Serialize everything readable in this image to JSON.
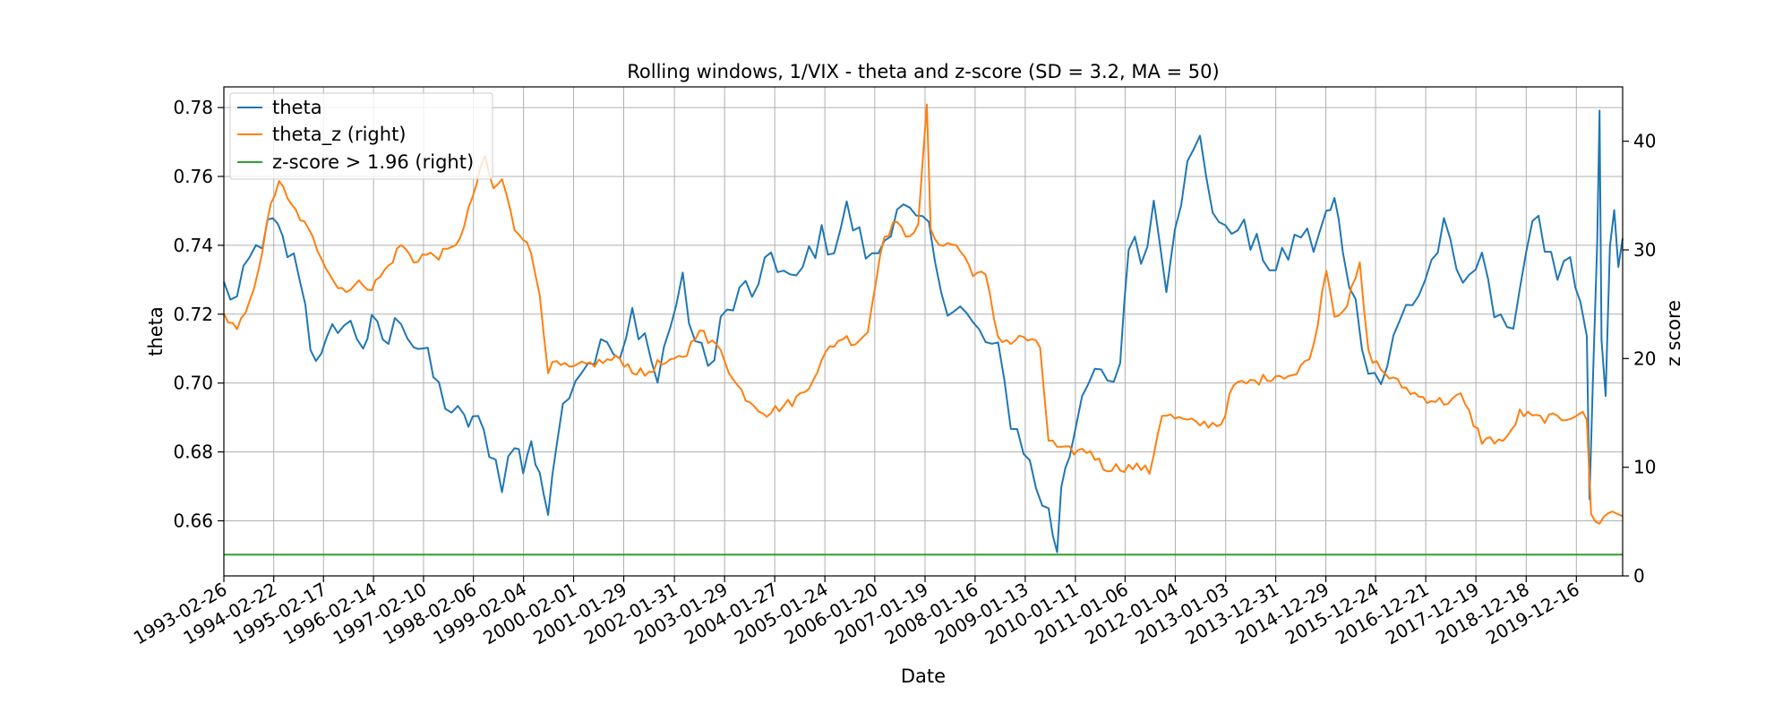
{
  "chart_data": {
    "type": "line",
    "title": "Rolling windows, 1/VIX - theta and z-score (SD = 3.2, MA = 50)",
    "xlabel": "Date",
    "ylabel": "theta",
    "y2label": "z score",
    "grid": true,
    "legend_placement": "top-left",
    "x_type": "date",
    "xlim": [
      "1993-02-26",
      "2020-11-15"
    ],
    "ylim": [
      0.644,
      0.786
    ],
    "y2lim": [
      0,
      45
    ],
    "x_ticks": [
      "1993-02-26",
      "1994-02-22",
      "1995-02-17",
      "1996-02-14",
      "1997-02-10",
      "1998-02-06",
      "1999-02-04",
      "2000-02-01",
      "2001-01-29",
      "2002-01-31",
      "2003-01-29",
      "2004-01-27",
      "2005-01-24",
      "2006-01-20",
      "2007-01-19",
      "2008-01-16",
      "2009-01-13",
      "2010-01-11",
      "2011-01-06",
      "2012-01-04",
      "2013-01-03",
      "2013-12-31",
      "2014-12-29",
      "2015-12-24",
      "2016-12-21",
      "2017-12-19",
      "2018-12-18",
      "2019-12-16"
    ],
    "y_ticks": [
      "0.66",
      "0.68",
      "0.70",
      "0.72",
      "0.74",
      "0.76",
      "0.78"
    ],
    "y2_ticks": [
      "0",
      "10",
      "20",
      "30",
      "40"
    ],
    "series": [
      {
        "name": "theta",
        "axis": "left",
        "color": "#1f77b4",
        "points": [
          [
            "1993-02-26",
            0.728
          ],
          [
            "1993-06-01",
            0.724
          ],
          [
            "1993-09-01",
            0.735
          ],
          [
            "1993-12-01",
            0.742
          ],
          [
            "1994-02-15",
            0.746
          ],
          [
            "1994-06-01",
            0.738
          ],
          [
            "1994-09-01",
            0.732
          ],
          [
            "1994-11-15",
            0.712
          ],
          [
            "1995-02-01",
            0.706
          ],
          [
            "1995-06-01",
            0.718
          ],
          [
            "1995-09-01",
            0.716
          ],
          [
            "1995-12-01",
            0.712
          ],
          [
            "1996-02-01",
            0.716
          ],
          [
            "1996-06-01",
            0.712
          ],
          [
            "1996-09-01",
            0.72
          ],
          [
            "1996-12-01",
            0.712
          ],
          [
            "1997-02-01",
            0.71
          ],
          [
            "1997-06-01",
            0.698
          ],
          [
            "1997-09-01",
            0.692
          ],
          [
            "1997-12-01",
            0.688
          ],
          [
            "1998-02-01",
            0.69
          ],
          [
            "1998-06-01",
            0.682
          ],
          [
            "1998-09-01",
            0.672
          ],
          [
            "1998-12-01",
            0.682
          ],
          [
            "1999-02-01",
            0.676
          ],
          [
            "1999-04-01",
            0.684
          ],
          [
            "1999-06-01",
            0.67
          ],
          [
            "1999-08-01",
            0.666
          ],
          [
            "1999-10-01",
            0.685
          ],
          [
            "2000-01-01",
            0.7
          ],
          [
            "2000-04-01",
            0.705
          ],
          [
            "2000-07-01",
            0.708
          ],
          [
            "2000-10-01",
            0.712
          ],
          [
            "2001-01-01",
            0.704
          ],
          [
            "2001-04-01",
            0.72
          ],
          [
            "2001-07-01",
            0.714
          ],
          [
            "2001-10-01",
            0.7
          ],
          [
            "2002-01-01",
            0.718
          ],
          [
            "2002-04-01",
            0.728
          ],
          [
            "2002-07-01",
            0.712
          ],
          [
            "2002-10-01",
            0.704
          ],
          [
            "2003-01-01",
            0.718
          ],
          [
            "2003-04-01",
            0.722
          ],
          [
            "2003-07-01",
            0.728
          ],
          [
            "2003-10-01",
            0.726
          ],
          [
            "2004-01-01",
            0.738
          ],
          [
            "2004-04-01",
            0.732
          ],
          [
            "2004-07-01",
            0.728
          ],
          [
            "2004-10-01",
            0.738
          ],
          [
            "2005-01-01",
            0.742
          ],
          [
            "2005-04-01",
            0.74
          ],
          [
            "2005-07-01",
            0.75
          ],
          [
            "2005-10-01",
            0.742
          ],
          [
            "2006-01-01",
            0.735
          ],
          [
            "2006-04-01",
            0.742
          ],
          [
            "2006-07-01",
            0.752
          ],
          [
            "2006-10-01",
            0.748
          ],
          [
            "2007-01-01",
            0.744
          ],
          [
            "2007-02-15",
            0.746
          ],
          [
            "2007-04-01",
            0.732
          ],
          [
            "2007-07-01",
            0.724
          ],
          [
            "2007-10-01",
            0.722
          ],
          [
            "2008-01-01",
            0.716
          ],
          [
            "2008-04-01",
            0.712
          ],
          [
            "2008-07-01",
            0.708
          ],
          [
            "2008-10-01",
            0.69
          ],
          [
            "2009-01-01",
            0.682
          ],
          [
            "2009-04-01",
            0.67
          ],
          [
            "2009-07-01",
            0.662
          ],
          [
            "2009-09-01",
            0.652
          ],
          [
            "2009-10-01",
            0.672
          ],
          [
            "2009-12-01",
            0.682
          ],
          [
            "2010-03-01",
            0.692
          ],
          [
            "2010-06-01",
            0.704
          ],
          [
            "2010-09-01",
            0.698
          ],
          [
            "2010-12-01",
            0.706
          ],
          [
            "2011-02-01",
            0.742
          ],
          [
            "2011-05-01",
            0.736
          ],
          [
            "2011-08-01",
            0.752
          ],
          [
            "2011-11-01",
            0.73
          ],
          [
            "2012-01-01",
            0.748
          ],
          [
            "2012-04-01",
            0.762
          ],
          [
            "2012-07-01",
            0.77
          ],
          [
            "2012-10-01",
            0.752
          ],
          [
            "2013-01-01",
            0.742
          ],
          [
            "2013-04-01",
            0.748
          ],
          [
            "2013-07-01",
            0.74
          ],
          [
            "2013-10-01",
            0.738
          ],
          [
            "2014-01-01",
            0.732
          ],
          [
            "2014-04-01",
            0.738
          ],
          [
            "2014-07-01",
            0.744
          ],
          [
            "2014-10-01",
            0.74
          ],
          [
            "2015-01-01",
            0.748
          ],
          [
            "2015-03-01",
            0.752
          ],
          [
            "2015-05-01",
            0.74
          ],
          [
            "2015-08-01",
            0.722
          ],
          [
            "2015-11-01",
            0.706
          ],
          [
            "2016-02-01",
            0.7
          ],
          [
            "2016-05-01",
            0.712
          ],
          [
            "2016-08-01",
            0.722
          ],
          [
            "2016-11-01",
            0.726
          ],
          [
            "2017-02-01",
            0.735
          ],
          [
            "2017-05-01",
            0.744
          ],
          [
            "2017-08-01",
            0.732
          ],
          [
            "2017-11-01",
            0.728
          ],
          [
            "2018-02-01",
            0.742
          ],
          [
            "2018-05-01",
            0.72
          ],
          [
            "2018-08-01",
            0.712
          ],
          [
            "2018-11-01",
            0.728
          ],
          [
            "2019-02-01",
            0.75
          ],
          [
            "2019-05-01",
            0.74
          ],
          [
            "2019-08-01",
            0.728
          ],
          [
            "2019-11-01",
            0.734
          ],
          [
            "2020-01-15",
            0.722
          ],
          [
            "2020-03-01",
            0.71
          ],
          [
            "2020-03-20",
            0.668
          ],
          [
            "2020-04-15",
            0.7
          ],
          [
            "2020-05-15",
            0.74
          ],
          [
            "2020-06-01",
            0.778
          ],
          [
            "2020-06-15",
            0.712
          ],
          [
            "2020-07-15",
            0.7
          ],
          [
            "2020-08-15",
            0.736
          ],
          [
            "2020-09-15",
            0.748
          ],
          [
            "2020-10-15",
            0.738
          ],
          [
            "2020-11-15",
            0.742
          ]
        ]
      },
      {
        "name": "theta_z (right)",
        "axis": "right",
        "color": "#ff7f0e",
        "points": [
          [
            "1993-02-26",
            24.0
          ],
          [
            "1993-06-01",
            22.5
          ],
          [
            "1993-09-01",
            25.0
          ],
          [
            "1993-12-01",
            30.0
          ],
          [
            "1994-02-01",
            34.0
          ],
          [
            "1994-04-01",
            36.5
          ],
          [
            "1994-06-01",
            34.5
          ],
          [
            "1994-09-01",
            33.0
          ],
          [
            "1994-12-01",
            31.0
          ],
          [
            "1995-02-01",
            29.5
          ],
          [
            "1995-04-01",
            28.0
          ],
          [
            "1995-06-01",
            26.5
          ],
          [
            "1995-09-01",
            26.5
          ],
          [
            "1995-12-01",
            27.0
          ],
          [
            "1996-02-01",
            26.5
          ],
          [
            "1996-06-01",
            28.5
          ],
          [
            "1996-09-01",
            30.5
          ],
          [
            "1996-12-01",
            29.0
          ],
          [
            "1997-02-01",
            29.5
          ],
          [
            "1997-06-01",
            29.5
          ],
          [
            "1997-09-01",
            30.0
          ],
          [
            "1997-12-01",
            32.0
          ],
          [
            "1998-02-01",
            35.0
          ],
          [
            "1998-05-01",
            38.5
          ],
          [
            "1998-07-01",
            35.5
          ],
          [
            "1998-09-01",
            36.5
          ],
          [
            "1998-12-01",
            32.0
          ],
          [
            "1999-03-01",
            31.0
          ],
          [
            "1999-06-01",
            26.0
          ],
          [
            "1999-08-01",
            19.0
          ],
          [
            "1999-10-01",
            19.5
          ],
          [
            "2000-01-01",
            19.0
          ],
          [
            "2000-06-01",
            19.5
          ],
          [
            "2001-01-01",
            20.0
          ],
          [
            "2001-04-01",
            19.0
          ],
          [
            "2001-07-01",
            18.5
          ],
          [
            "2001-10-01",
            19.5
          ],
          [
            "2002-01-01",
            19.5
          ],
          [
            "2002-05-01",
            20.5
          ],
          [
            "2002-08-01",
            23.0
          ],
          [
            "2002-10-01",
            21.5
          ],
          [
            "2003-01-01",
            21.0
          ],
          [
            "2003-04-01",
            18.0
          ],
          [
            "2003-07-01",
            16.5
          ],
          [
            "2003-10-01",
            15.5
          ],
          [
            "2003-12-01",
            15.0
          ],
          [
            "2004-03-01",
            15.5
          ],
          [
            "2004-06-01",
            16.0
          ],
          [
            "2004-09-01",
            17.0
          ],
          [
            "2004-12-01",
            19.0
          ],
          [
            "2005-03-01",
            21.0
          ],
          [
            "2005-06-01",
            22.0
          ],
          [
            "2005-09-01",
            21.5
          ],
          [
            "2005-12-01",
            22.5
          ],
          [
            "2006-03-01",
            30.0
          ],
          [
            "2006-06-01",
            32.5
          ],
          [
            "2006-09-01",
            31.5
          ],
          [
            "2006-12-01",
            32.0
          ],
          [
            "2007-02-01",
            43.5
          ],
          [
            "2007-03-01",
            31.5
          ],
          [
            "2007-06-01",
            30.5
          ],
          [
            "2007-09-01",
            30.5
          ],
          [
            "2008-01-01",
            28.0
          ],
          [
            "2008-04-01",
            27.5
          ],
          [
            "2008-07-01",
            22.0
          ],
          [
            "2008-10-01",
            21.5
          ],
          [
            "2009-01-01",
            22.0
          ],
          [
            "2009-05-01",
            21.0
          ],
          [
            "2009-07-01",
            12.5
          ],
          [
            "2009-10-01",
            11.5
          ],
          [
            "2010-01-01",
            11.5
          ],
          [
            "2010-05-01",
            11.5
          ],
          [
            "2010-08-01",
            10.0
          ],
          [
            "2011-01-01",
            10.0
          ],
          [
            "2011-05-01",
            10.0
          ],
          [
            "2011-07-01",
            9.5
          ],
          [
            "2011-10-01",
            15.0
          ],
          [
            "2012-01-01",
            14.5
          ],
          [
            "2012-06-01",
            14.0
          ],
          [
            "2012-12-01",
            14.0
          ],
          [
            "2013-03-01",
            17.5
          ],
          [
            "2013-09-01",
            18.0
          ],
          [
            "2014-01-01",
            18.5
          ],
          [
            "2014-06-01",
            18.5
          ],
          [
            "2014-10-01",
            21.0
          ],
          [
            "2015-01-01",
            28.5
          ],
          [
            "2015-03-01",
            24.0
          ],
          [
            "2015-06-01",
            25.0
          ],
          [
            "2015-09-01",
            28.5
          ],
          [
            "2015-11-01",
            20.5
          ],
          [
            "2016-02-01",
            19.0
          ],
          [
            "2016-05-01",
            18.0
          ],
          [
            "2016-11-01",
            16.5
          ],
          [
            "2017-05-01",
            16.0
          ],
          [
            "2017-09-01",
            16.5
          ],
          [
            "2018-02-01",
            12.5
          ],
          [
            "2018-08-01",
            12.5
          ],
          [
            "2018-11-01",
            15.0
          ],
          [
            "2019-03-01",
            14.5
          ],
          [
            "2019-09-01",
            14.5
          ],
          [
            "2020-01-01",
            15.0
          ],
          [
            "2020-03-01",
            14.5
          ],
          [
            "2020-04-01",
            5.5
          ],
          [
            "2020-06-01",
            5.0
          ],
          [
            "2020-09-01",
            6.0
          ],
          [
            "2020-11-15",
            5.5
          ]
        ]
      },
      {
        "name": "z-score > 1.96 (right)",
        "axis": "right",
        "color": "#2ca02c",
        "points": [
          [
            "1993-02-26",
            1.96
          ],
          [
            "2020-11-15",
            1.96
          ]
        ]
      }
    ]
  }
}
